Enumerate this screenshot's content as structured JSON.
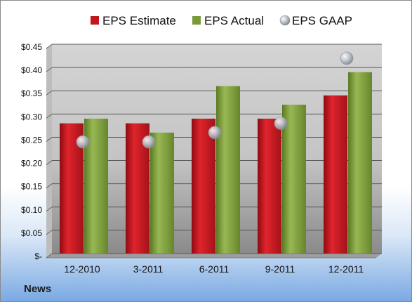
{
  "footer": {
    "label": "News"
  },
  "chart_data": {
    "type": "bar",
    "categories": [
      "12-2010",
      "3-2011",
      "6-2011",
      "9-2011",
      "12-2011"
    ],
    "series": [
      {
        "name": "EPS Estimate",
        "kind": "bar",
        "color": "#c0171f",
        "values": [
          0.28,
          0.28,
          0.29,
          0.29,
          0.34
        ]
      },
      {
        "name": "EPS Actual",
        "kind": "bar",
        "color": "#7a9a3a",
        "values": [
          0.29,
          0.26,
          0.36,
          0.32,
          0.39
        ]
      },
      {
        "name": "EPS GAAP",
        "kind": "scatter",
        "color": "#a9aeb6",
        "values": [
          0.24,
          0.24,
          0.26,
          0.28,
          0.42
        ]
      }
    ],
    "ylim": [
      0,
      0.45
    ],
    "yticks": [
      "$-",
      "$0.05",
      "$0.10",
      "$0.15",
      "$0.20",
      "$0.25",
      "$0.30",
      "$0.35",
      "$0.40",
      "$0.45"
    ],
    "grid": true,
    "legend": "top"
  }
}
